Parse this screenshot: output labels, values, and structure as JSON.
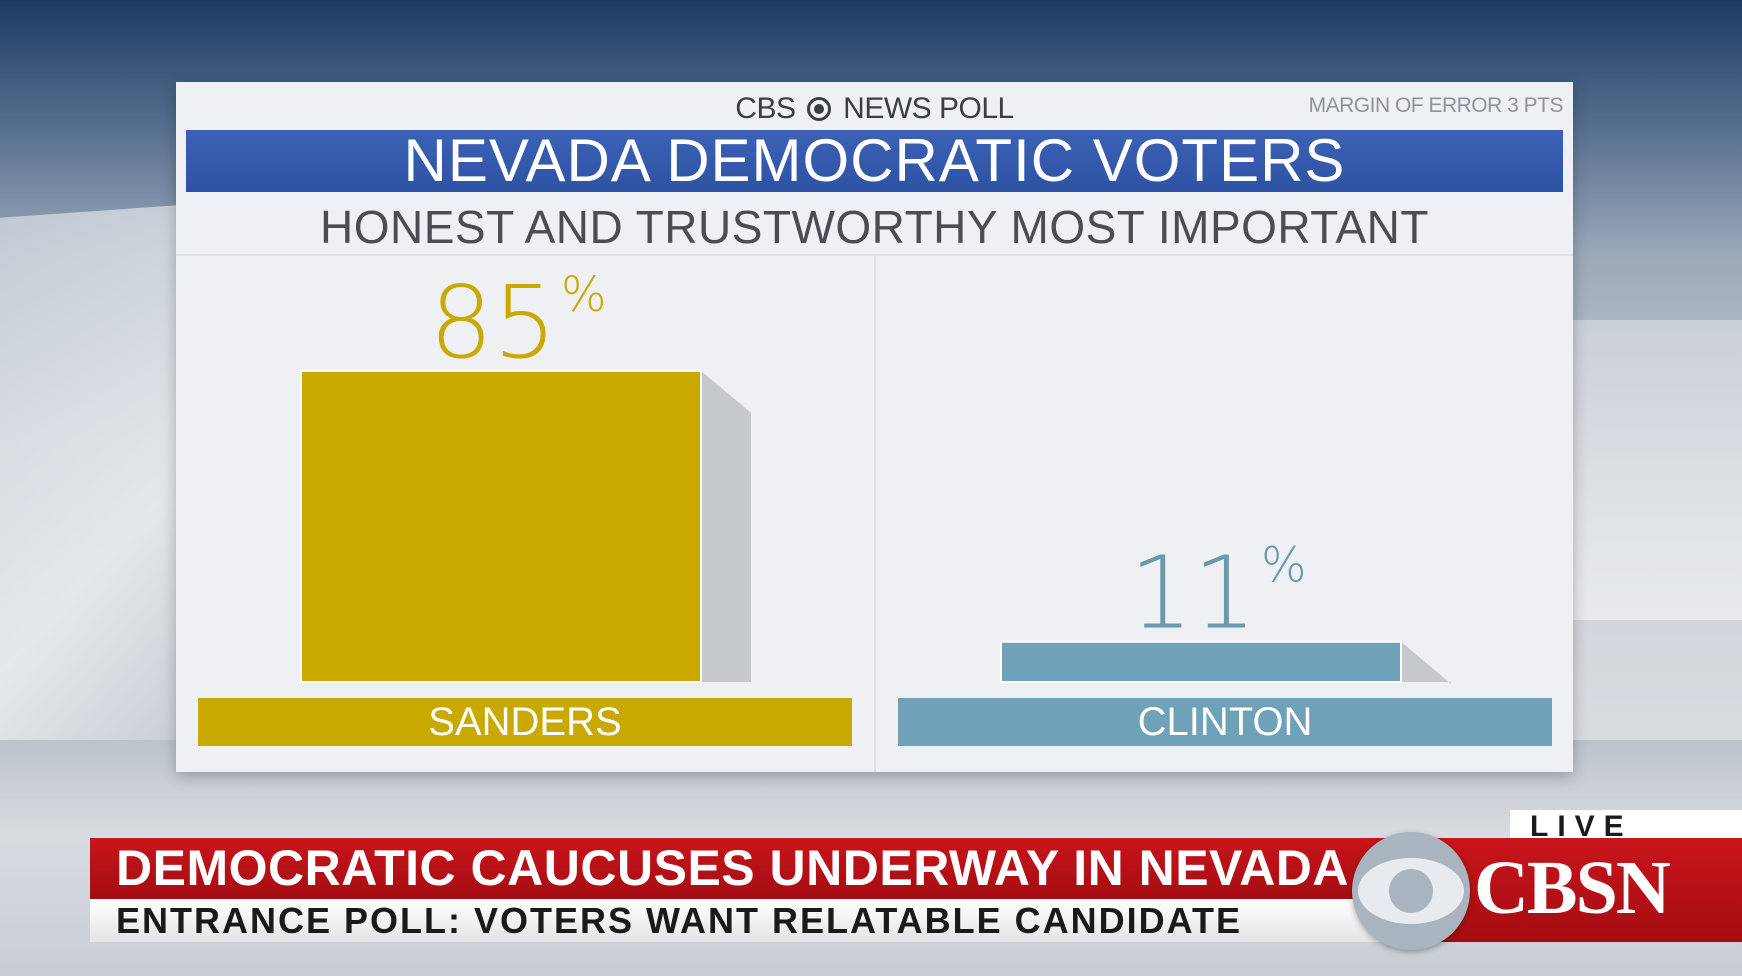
{
  "panel": {
    "brand_left": "CBS",
    "brand_right": "NEWS POLL",
    "margin_of_error": "MARGIN OF ERROR 3 PTS",
    "title": "NEVADA DEMOCRATIC VOTERS",
    "subtitle": "HONEST AND TRUSTWORTHY MOST IMPORTANT"
  },
  "chart_data": {
    "type": "bar",
    "title": "NEVADA DEMOCRATIC VOTERS",
    "subtitle": "HONEST AND TRUSTWORTHY MOST IMPORTANT",
    "categories": [
      "SANDERS",
      "CLINTON"
    ],
    "values": [
      85,
      11
    ],
    "value_labels": [
      "85",
      "11"
    ],
    "unit": "%",
    "ylim": [
      0,
      100
    ],
    "colors": [
      "#c9a800",
      "#6fa1b8"
    ],
    "value_label_colors": [
      "#c9a800",
      "#6a98ad"
    ],
    "grid": false,
    "legend": "none"
  },
  "lower_third": {
    "live": "LIVE",
    "headline": "DEMOCRATIC CAUCUSES UNDERWAY IN NEVADA",
    "subline": "ENTRANCE POLL: VOTERS WANT RELATABLE CANDIDATE",
    "network": "CBSN"
  }
}
